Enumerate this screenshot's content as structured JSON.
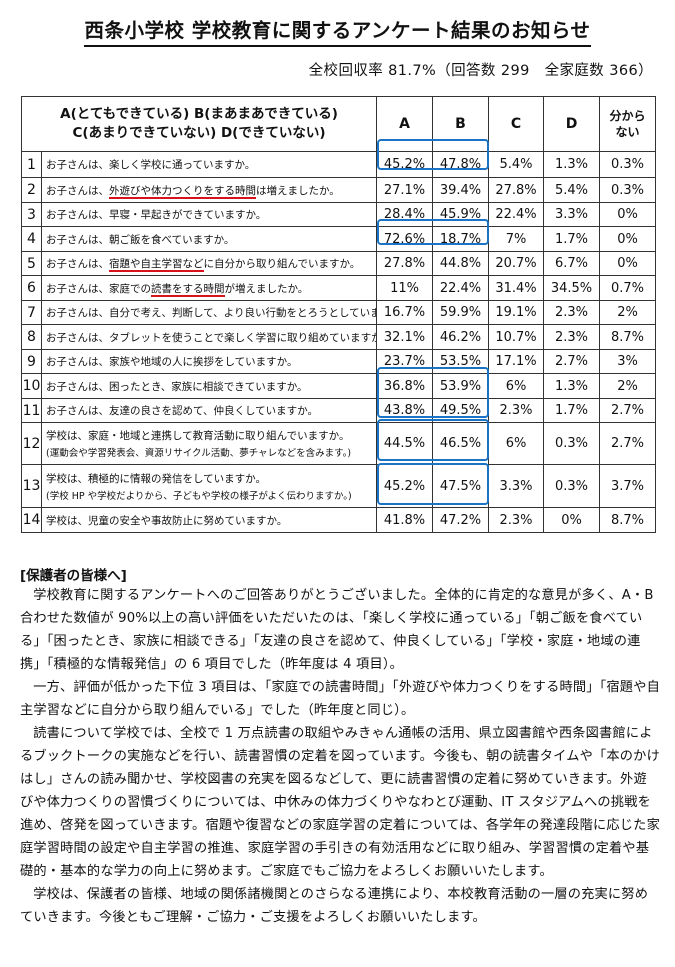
{
  "title": "西条小学校 学校教育に関するアンケート結果のお知らせ",
  "response_rate": "全校回収率 81.7%（回答数 299　全家庭数 366）",
  "table": {
    "legend_line1": "A(とてもできている) B(まあまあできている)",
    "legend_line2": "C(あまりできていない) D(できていない)",
    "columns": [
      "A",
      "B",
      "C",
      "D"
    ],
    "col_unknown_1": "分から",
    "col_unknown_2": "ない",
    "rows": [
      {
        "no": "1",
        "q": "お子さんは、楽しく学校に通っていますか。",
        "a": "45.2%",
        "b": "47.8%",
        "c": "5.4%",
        "d": "1.3%",
        "e": "0.3%"
      },
      {
        "no": "2",
        "q_pre": "お子さんは、",
        "q_u": "外遊びや体力つくりをする時間",
        "q_post": "は増えましたか。",
        "a": "27.1%",
        "b": "39.4%",
        "c": "27.8%",
        "d": "5.4%",
        "e": "0.3%"
      },
      {
        "no": "3",
        "q": "お子さんは、早寝・早起きができていますか。",
        "a": "28.4%",
        "b": "45.9%",
        "c": "22.4%",
        "d": "3.3%",
        "e": "0%"
      },
      {
        "no": "4",
        "q": "お子さんは、朝ご飯を食べていますか。",
        "a": "72.6%",
        "b": "18.7%",
        "c": "7%",
        "d": "1.7%",
        "e": "0%"
      },
      {
        "no": "5",
        "q_pre": "お子さんは、",
        "q_u": "宿題や自主学習など",
        "q_post": "に自分から取り組んでいますか。",
        "a": "27.8%",
        "b": "44.8%",
        "c": "20.7%",
        "d": "6.7%",
        "e": "0%"
      },
      {
        "no": "6",
        "q_pre": "お子さんは、家庭での",
        "q_u": "読書をする時間",
        "q_post": "が増えましたか。",
        "a": "11%",
        "b": "22.4%",
        "c": "31.4%",
        "d": "34.5%",
        "e": "0.7%"
      },
      {
        "no": "7",
        "q": "お子さんは、自分で考え、判断して、より良い行動をとろうとしていますか。",
        "a": "16.7%",
        "b": "59.9%",
        "c": "19.1%",
        "d": "2.3%",
        "e": "2%"
      },
      {
        "no": "8",
        "q": "お子さんは、タブレットを使うことで楽しく学習に取り組めていますか。",
        "a": "32.1%",
        "b": "46.2%",
        "c": "10.7%",
        "d": "2.3%",
        "e": "8.7%"
      },
      {
        "no": "9",
        "q": "お子さんは、家族や地域の人に挨拶をしていますか。",
        "a": "23.7%",
        "b": "53.5%",
        "c": "17.1%",
        "d": "2.7%",
        "e": "3%"
      },
      {
        "no": "10",
        "q": "お子さんは、困ったとき、家族に相談できていますか。",
        "a": "36.8%",
        "b": "53.9%",
        "c": "6%",
        "d": "1.3%",
        "e": "2%"
      },
      {
        "no": "11",
        "q": "お子さんは、友達の良さを認めて、仲良くしていますか。",
        "a": "43.8%",
        "b": "49.5%",
        "c": "2.3%",
        "d": "1.7%",
        "e": "2.7%"
      },
      {
        "no": "12",
        "q": "学校は、家庭・地域と連携して教育活動に取り組んでいますか。",
        "q_sub": "(運動会や学習発表会、資源リサイクル活動、夢チャレなどを含みます。)",
        "a": "44.5%",
        "b": "46.5%",
        "c": "6%",
        "d": "0.3%",
        "e": "2.7%"
      },
      {
        "no": "13",
        "q": "学校は、積極的に情報の発信をしていますか。",
        "q_sub": "(学校 HP や学校だよりから、子どもや学校の様子がよく伝わりますか。)",
        "a": "45.2%",
        "b": "47.5%",
        "c": "3.3%",
        "d": "0.3%",
        "e": "3.7%"
      },
      {
        "no": "14",
        "q": "学校は、児童の安全や事故防止に努めていますか。",
        "a": "41.8%",
        "b": "47.2%",
        "c": "2.3%",
        "d": "0%",
        "e": "8.7%"
      }
    ]
  },
  "notice": {
    "heading": "[保護者の皆様へ]",
    "paragraphs": [
      "学校教育に関するアンケートへのご回答ありがとうございました。全体的に肯定的な意見が多く、A・B 合わせた数値が 90%以上の高い評価をいただいたのは、「楽しく学校に通っている」「朝ご飯を食べている」「困ったとき、家族に相談できる」「友達の良さを認めて、仲良くしている」「学校・家庭・地域の連携」「積極的な情報発信」の 6 項目でした（昨年度は 4 項目）。",
      "一方、評価が低かった下位 3 項目は、「家庭での読書時間」「外遊びや体力つくりをする時間」「宿題や自主学習などに自分から取り組んでいる」でした（昨年度と同じ）。",
      "読書について学校では、全校で 1 万点読書の取組やみきゃん通帳の活用、県立図書館や西条図書館によるブックトークの実施などを行い、読書習慣の定着を図っています。今後も、朝の読書タイムや「本のかけはし」さんの読み聞かせ、学校図書の充実を図るなどして、更に読書習慣の定着に努めていきます。外遊びや体力つくりの習慣づくりについては、中休みの体力づくりやなわとび運動、IT スタジアムへの挑戦を進め、啓発を図っていきます。宿題や復習などの家庭学習の定着については、各学年の発達段階に応じた家庭学習時間の設定や自主学習の推進、家庭学習の手引きの有効活用などに取り組み、学習習慣の定着や基礎的・基本的な学力の向上に努めます。ご家庭でもご協力をよろしくお願いいたします。",
      "学校は、保護者の皆様、地域の関係諸機関とのさらなる連携により、本校教育活動の一層の充実に努めていきます。今後ともご理解・ご協力・ご支援をよろしくお願いいたします。"
    ]
  },
  "colors": {
    "highlight": "#1b73c6",
    "underline": "#d6121a"
  }
}
